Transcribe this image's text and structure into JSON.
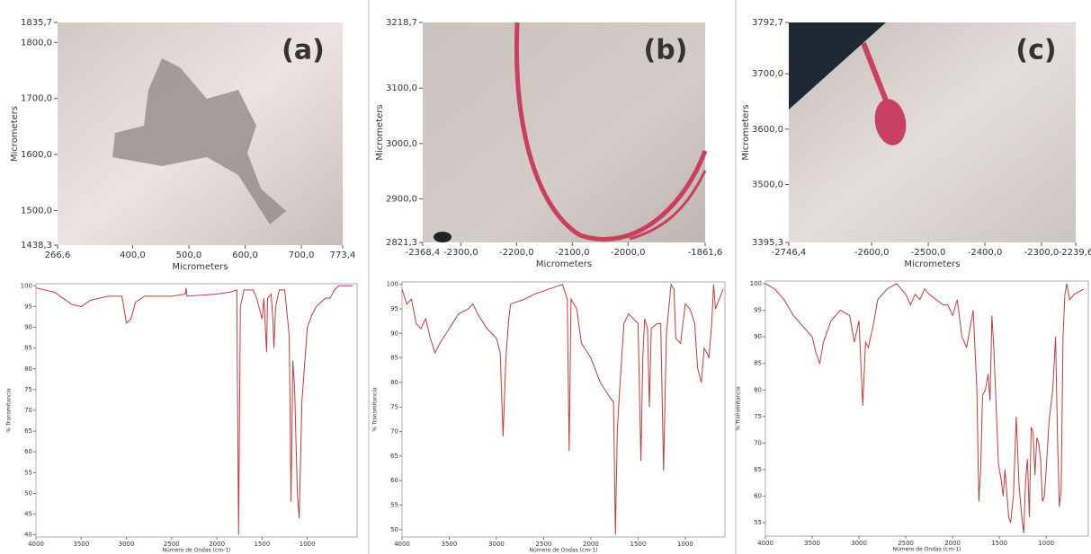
{
  "chart_data": [
    {
      "type": "image",
      "label": "(a)",
      "xlabel": "Micrometers",
      "ylabel": "Micrometers",
      "xlim": [
        266.6,
        773.4
      ],
      "ylim": [
        1438.3,
        1835.7
      ],
      "xticks": [
        {
          "value": 266.6,
          "label": "266,6"
        },
        {
          "value": 400,
          "label": "400,0"
        },
        {
          "value": 500,
          "label": "500,0"
        },
        {
          "value": 600,
          "label": "600,0"
        },
        {
          "value": 700,
          "label": "700,0"
        },
        {
          "value": 773.4,
          "label": "773,4"
        }
      ],
      "yticks": [
        {
          "value": 1438.3,
          "label": "1438,3"
        },
        {
          "value": 1500,
          "label": "1500,0"
        },
        {
          "value": 1600,
          "label": "1600,0"
        },
        {
          "value": 1700,
          "label": "1700,0"
        },
        {
          "value": 1800,
          "label": "1800,0"
        },
        {
          "value": 1835.7,
          "label": "1835,7"
        }
      ]
    },
    {
      "type": "image",
      "label": "(b)",
      "xlabel": "Micrometers",
      "ylabel": "Micrometers",
      "xlim": [
        -2368.4,
        -1861.6
      ],
      "ylim": [
        2821.3,
        3218.7
      ],
      "xticks": [
        {
          "value": -2368.4,
          "label": "-2368,4"
        },
        {
          "value": -2300,
          "label": "-2300,0"
        },
        {
          "value": -2200,
          "label": "-2200,0"
        },
        {
          "value": -2100,
          "label": "-2100,0"
        },
        {
          "value": -2000,
          "label": "-2000,0"
        },
        {
          "value": -1861.6,
          "label": "-1861,6"
        }
      ],
      "yticks": [
        {
          "value": 2821.3,
          "label": "2821,3"
        },
        {
          "value": 2900,
          "label": "2900,0"
        },
        {
          "value": 3000,
          "label": "3000,0"
        },
        {
          "value": 3100,
          "label": "3100,0"
        },
        {
          "value": 3218.7,
          "label": "3218,7"
        }
      ]
    },
    {
      "type": "image",
      "label": "(c)",
      "xlabel": "Micrometers",
      "ylabel": "Micrometers",
      "xlim": [
        -2746.4,
        -2239.6
      ],
      "ylim": [
        3395.3,
        3792.7
      ],
      "xticks": [
        {
          "value": -2746.4,
          "label": "-2746,4"
        },
        {
          "value": -2600,
          "label": "-2600,0"
        },
        {
          "value": -2500,
          "label": "-2500,0"
        },
        {
          "value": -2400,
          "label": "-2400,0"
        },
        {
          "value": -2300,
          "label": "-2300,0"
        },
        {
          "value": -2239.6,
          "label": "-2239,6"
        }
      ],
      "yticks": [
        {
          "value": 3395.3,
          "label": "3395,3"
        },
        {
          "value": 3500,
          "label": "3500,0"
        },
        {
          "value": 3600,
          "label": "3600,0"
        },
        {
          "value": 3700,
          "label": "3700,0"
        },
        {
          "value": 3792.7,
          "label": "3792,7"
        }
      ]
    },
    {
      "type": "line",
      "xlabel": "Número de Ondas (cm-1)",
      "ylabel": "% Transmitancia",
      "color": "#c23b3b",
      "xlim": [
        4000,
        450
      ],
      "ylim": [
        39.5,
        100.5
      ],
      "xticks": [
        4000,
        3500,
        3000,
        2500,
        2000,
        1500,
        1000
      ],
      "yticks": [
        40,
        45,
        50,
        55,
        60,
        65,
        70,
        75,
        80,
        85,
        90,
        95,
        100
      ],
      "x": [
        4000,
        3900,
        3800,
        3700,
        3600,
        3500,
        3400,
        3200,
        3050,
        3000,
        2950,
        2900,
        2800,
        2500,
        2350,
        2340,
        2330,
        2000,
        1850,
        1780,
        1760,
        1740,
        1700,
        1600,
        1560,
        1500,
        1480,
        1450,
        1440,
        1400,
        1380,
        1370,
        1350,
        1310,
        1250,
        1200,
        1180,
        1160,
        1140,
        1110,
        1090,
        1060,
        1000,
        950,
        900,
        850,
        800,
        750,
        700,
        650,
        500
      ],
      "values": [
        99.5,
        99,
        98.5,
        97,
        95.5,
        95,
        96.5,
        97.5,
        97.5,
        91,
        92,
        96,
        97.5,
        97.5,
        98,
        99.5,
        97.5,
        98,
        98.5,
        99,
        40,
        95,
        99,
        99,
        97,
        92,
        97,
        84,
        97,
        98,
        92,
        85,
        95,
        99,
        99,
        88,
        48,
        82,
        75,
        50,
        44,
        72,
        90,
        93,
        95,
        96,
        97,
        97,
        99,
        100,
        100
      ]
    },
    {
      "type": "line",
      "xlabel": "Número de Ondas (cm-1)",
      "ylabel": "% Transmitancia",
      "color": "#c23b3b",
      "xlim": [
        4000,
        580
      ],
      "ylim": [
        48.5,
        100.5
      ],
      "xticks": [
        4000,
        3500,
        3000,
        2500,
        2000,
        1500,
        1000
      ],
      "yticks": [
        50,
        55,
        60,
        65,
        70,
        75,
        80,
        85,
        90,
        95,
        100
      ],
      "x": [
        4000,
        3950,
        3900,
        3850,
        3800,
        3750,
        3700,
        3650,
        3600,
        3500,
        3400,
        3300,
        3250,
        3200,
        3100,
        3000,
        2960,
        2930,
        2900,
        2870,
        2850,
        2700,
        2600,
        2450,
        2300,
        2250,
        2230,
        2210,
        2150,
        2100,
        2000,
        1900,
        1800,
        1760,
        1740,
        1720,
        1700,
        1650,
        1600,
        1500,
        1470,
        1450,
        1430,
        1400,
        1380,
        1360,
        1300,
        1260,
        1230,
        1200,
        1150,
        1120,
        1100,
        1050,
        1000,
        950,
        900,
        870,
        830,
        800,
        770,
        750,
        720,
        700,
        680,
        600
      ],
      "values": [
        99,
        96,
        97,
        92,
        91,
        93,
        89,
        86,
        88,
        91,
        94,
        95,
        96,
        94,
        91,
        89,
        86,
        69,
        85,
        93,
        96,
        97,
        98,
        99,
        100,
        97,
        66,
        97,
        95,
        88,
        85,
        80,
        77,
        76,
        49,
        70,
        77,
        92,
        94,
        92,
        64,
        85,
        93,
        91,
        75,
        91,
        92,
        92,
        62,
        90,
        100,
        99,
        89,
        88,
        96,
        95,
        92,
        83,
        80,
        87,
        86,
        85,
        92,
        100,
        95,
        99
      ]
    },
    {
      "type": "line",
      "xlabel": "Número de Ondas (cm-1)",
      "ylabel": "% Transmitancia",
      "color": "#c23b3b",
      "xlim": [
        4000,
        550
      ],
      "ylim": [
        52.5,
        100.5
      ],
      "xticks": [
        4000,
        3500,
        3000,
        2500,
        2000,
        1500,
        1000
      ],
      "yticks": [
        55,
        60,
        65,
        70,
        75,
        80,
        85,
        90,
        95,
        100
      ],
      "x": [
        4000,
        3900,
        3800,
        3700,
        3600,
        3500,
        3460,
        3420,
        3380,
        3300,
        3200,
        3100,
        3050,
        3000,
        2960,
        2930,
        2900,
        2850,
        2800,
        2700,
        2600,
        2500,
        2450,
        2400,
        2350,
        2300,
        2250,
        2100,
        2050,
        2000,
        1950,
        1900,
        1850,
        1800,
        1780,
        1740,
        1720,
        1700,
        1680,
        1650,
        1620,
        1600,
        1580,
        1560,
        1530,
        1510,
        1480,
        1460,
        1440,
        1400,
        1380,
        1350,
        1320,
        1290,
        1260,
        1240,
        1220,
        1200,
        1180,
        1160,
        1140,
        1120,
        1100,
        1080,
        1060,
        1040,
        1020,
        1000,
        970,
        950,
        930,
        900,
        880,
        860,
        840,
        820,
        800,
        780,
        750,
        700,
        600
      ],
      "values": [
        100,
        99,
        97,
        94,
        92,
        90,
        87,
        85,
        89,
        93,
        95,
        94,
        89,
        93,
        77,
        89,
        88,
        92,
        97,
        99,
        100,
        98,
        96,
        98,
        97,
        99,
        98,
        96,
        96,
        94,
        97,
        90,
        88,
        93,
        95,
        80,
        59,
        65,
        79,
        80,
        83,
        78,
        94,
        88,
        75,
        66,
        63,
        60,
        65,
        56,
        55,
        60,
        75,
        62,
        56,
        53,
        63,
        67,
        56,
        73,
        72,
        64,
        71,
        70,
        67,
        59,
        60,
        65,
        74,
        77,
        80,
        90,
        72,
        58,
        61,
        90,
        98,
        100,
        97,
        98,
        99
      ]
    }
  ]
}
